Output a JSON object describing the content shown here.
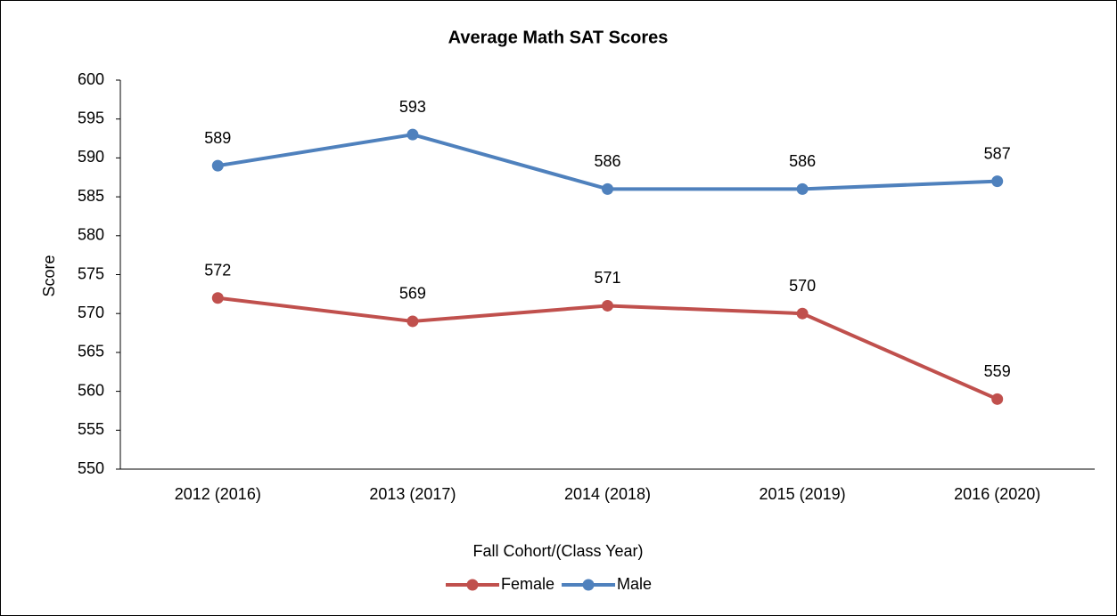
{
  "chart_data": {
    "type": "line",
    "title": "Average Math SAT Scores",
    "categories": [
      "2012 (2016)",
      "2013 (2017)",
      "2014 (2018)",
      "2015 (2019)",
      "2016 (2020)"
    ],
    "series": [
      {
        "name": "Female",
        "color": "#c0504d",
        "values": [
          572,
          569,
          571,
          570,
          559
        ]
      },
      {
        "name": "Male",
        "color": "#4f81bd",
        "values": [
          589,
          593,
          586,
          586,
          587
        ]
      }
    ],
    "ylim": [
      550,
      600
    ],
    "yticks": [
      550,
      555,
      560,
      565,
      570,
      575,
      580,
      585,
      590,
      595,
      600
    ],
    "y_label": "Score",
    "x_label": "Fall Cohort/(Class Year)",
    "grid": false,
    "legend": "bottom"
  }
}
